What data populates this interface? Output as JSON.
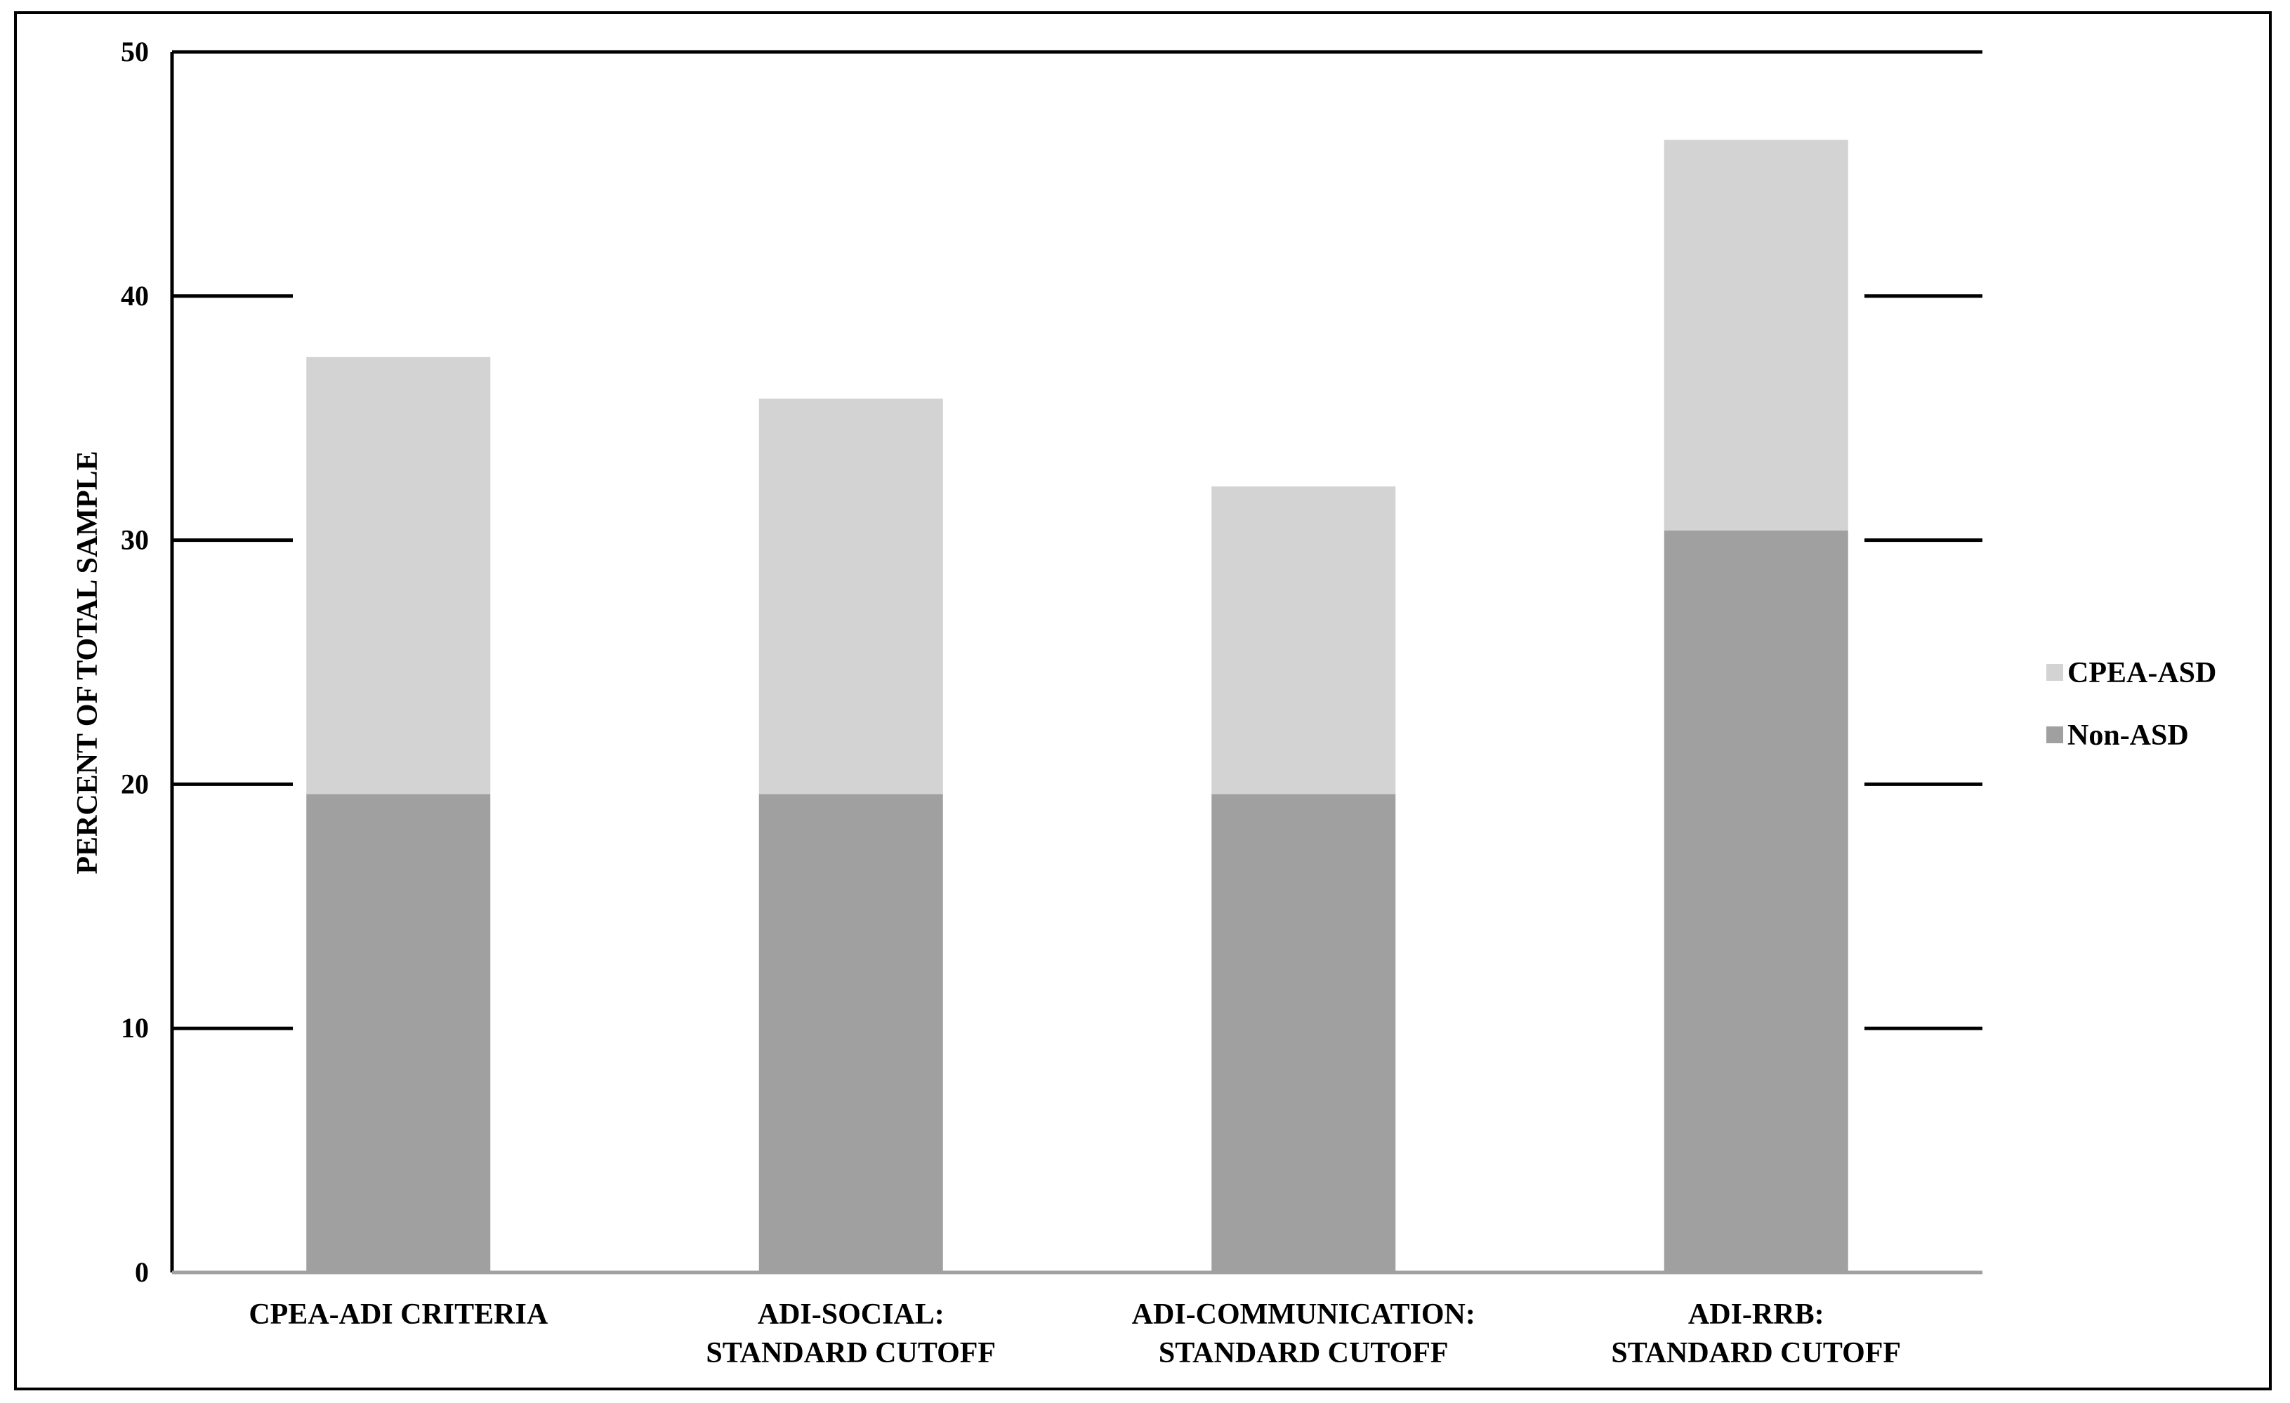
{
  "chart_data": {
    "type": "bar",
    "stacked": true,
    "ylabel": "PERCENT OF TOTAL SAMPLE",
    "xlabel": "",
    "ylim": [
      0,
      50
    ],
    "yticks": [
      0,
      10,
      20,
      30,
      40,
      50
    ],
    "categories": [
      [
        "CPEA-ADI CRITERIA"
      ],
      [
        "ADI-SOCIAL:",
        "STANDARD CUTOFF"
      ],
      [
        "ADI-COMMUNICATION:",
        "STANDARD CUTOFF"
      ],
      [
        "ADI-RRB:",
        "STANDARD CUTOFF"
      ]
    ],
    "series": [
      {
        "name": "Non-ASD",
        "color": "#a0a0a0",
        "values": [
          19.6,
          19.6,
          19.6,
          30.4
        ]
      },
      {
        "name": "CPEA-ASD",
        "color": "#d3d3d3",
        "values": [
          17.9,
          16.2,
          12.6,
          16.0
        ]
      }
    ],
    "legend": {
      "position": "right",
      "order": [
        "CPEA-ASD",
        "Non-ASD"
      ]
    },
    "grid": "partial-horizontal"
  }
}
